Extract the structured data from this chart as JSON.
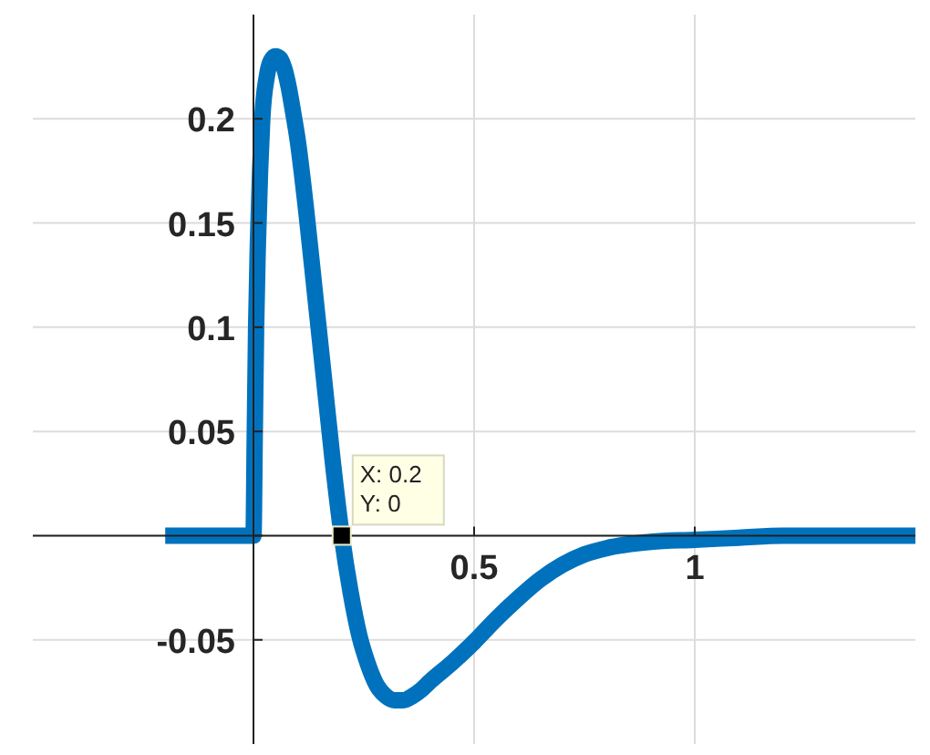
{
  "chart_data": {
    "type": "line",
    "x": [
      -0.2,
      -0.1,
      0,
      0.003,
      0.006,
      0.01,
      0.015,
      0.02,
      0.03,
      0.04,
      0.05,
      0.06,
      0.07,
      0.08,
      0.09,
      0.1,
      0.12,
      0.14,
      0.16,
      0.18,
      0.2,
      0.22,
      0.24,
      0.26,
      0.28,
      0.3,
      0.32,
      0.34,
      0.36,
      0.38,
      0.4,
      0.45,
      0.5,
      0.55,
      0.6,
      0.65,
      0.7,
      0.75,
      0.8,
      0.9,
      1,
      1.1,
      1.2,
      1.3,
      1.4,
      1.5
    ],
    "series": [
      {
        "color": "#0072bd",
        "values": [
          0,
          0,
          0,
          0.05,
          0.1,
          0.14,
          0.175,
          0.2,
          0.22,
          0.228,
          0.23,
          0.229,
          0.224,
          0.215,
          0.203,
          0.19,
          0.155,
          0.115,
          0.075,
          0.035,
          0,
          -0.027,
          -0.048,
          -0.062,
          -0.072,
          -0.077,
          -0.079,
          -0.079,
          -0.077,
          -0.074,
          -0.07,
          -0.061,
          -0.051,
          -0.04,
          -0.03,
          -0.021,
          -0.014,
          -0.009,
          -0.006,
          -0.003,
          -0.002,
          -0.001,
          0,
          0,
          0,
          0
        ]
      }
    ],
    "xlim": [
      -0.5,
      1.5
    ],
    "ylim": [
      -0.1,
      0.25
    ],
    "xticks": [
      {
        "value": 0,
        "label": null
      },
      0.5,
      1
    ],
    "yticks": [
      -0.05,
      {
        "value": 0,
        "label": null
      },
      0.05,
      0.1,
      0.15,
      0.2
    ],
    "grid": true,
    "marker": "none",
    "line_style": "solid",
    "annotations": [
      {
        "text": "X: 0.2\nY: 0",
        "x": 0.2,
        "y": 0
      }
    ]
  }
}
